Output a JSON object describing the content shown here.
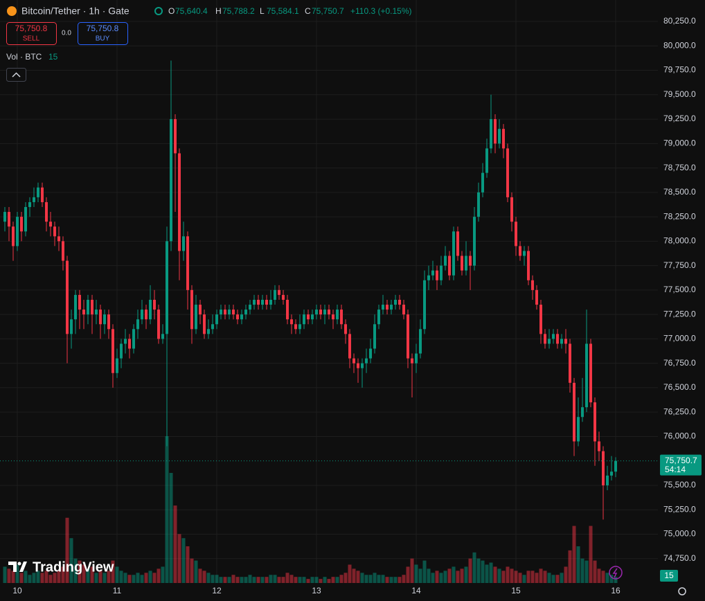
{
  "chart_data": {
    "type": "candlestick",
    "header": {
      "title": "Bitcoin/Tether · 1h · Gate",
      "o_label": "O",
      "open": "75,640.4",
      "h_label": "H",
      "high": "75,788.2",
      "l_label": "L",
      "low": "75,584.1",
      "c_label": "C",
      "close": "75,750.7",
      "change": "+110.3 (+0.15%)"
    },
    "sell": {
      "price": "75,750.8",
      "label": "SELL"
    },
    "spread": "0.0",
    "buy": {
      "price": "75,750.8",
      "label": "BUY"
    },
    "volume_label": "Vol · BTC",
    "volume_value": "15",
    "last_price_label": "75,750.7",
    "countdown": "54:14",
    "volume_tag": "15",
    "brand": "TradingView",
    "up_color": "#089981",
    "down_color": "#f23645",
    "grid": true,
    "xtick_labels": [
      "10",
      "11",
      "12",
      "13",
      "14",
      "15",
      "16"
    ],
    "ylim": [
      74500,
      80470
    ],
    "yticks": [
      {
        "value": 74750,
        "label": "74,750.0"
      },
      {
        "value": 75000,
        "label": "75,000.0"
      },
      {
        "value": 75250,
        "label": "75,250.0"
      },
      {
        "value": 75500,
        "label": "75,500.0"
      },
      {
        "value": 76000,
        "label": "76,000.0"
      },
      {
        "value": 76250,
        "label": "76,250.0"
      },
      {
        "value": 76500,
        "label": "76,500.0"
      },
      {
        "value": 76750,
        "label": "76,750.0"
      },
      {
        "value": 77000,
        "label": "77,000.0"
      },
      {
        "value": 77250,
        "label": "77,250.0"
      },
      {
        "value": 77500,
        "label": "77,500.0"
      },
      {
        "value": 77750,
        "label": "77,750.0"
      },
      {
        "value": 78000,
        "label": "78,000.0"
      },
      {
        "value": 78250,
        "label": "78,250.0"
      },
      {
        "value": 78500,
        "label": "78,500.0"
      },
      {
        "value": 78750,
        "label": "78,750.0"
      },
      {
        "value": 79000,
        "label": "79,000.0"
      },
      {
        "value": 79250,
        "label": "79,250.0"
      },
      {
        "value": 79500,
        "label": "79,500.0"
      },
      {
        "value": 79750,
        "label": "79,750.0"
      },
      {
        "value": 80000,
        "label": "80,000.0"
      },
      {
        "value": 80250,
        "label": "80,250.0"
      }
    ],
    "last_price": 75750.7,
    "candles": [
      [
        78200,
        78350,
        78100,
        78300,
        40
      ],
      [
        78300,
        78350,
        78000,
        78150,
        35
      ],
      [
        78150,
        78200,
        77800,
        77950,
        30
      ],
      [
        77950,
        78300,
        77900,
        78250,
        45
      ],
      [
        78250,
        78300,
        78000,
        78100,
        25
      ],
      [
        78100,
        78400,
        78050,
        78350,
        30
      ],
      [
        78350,
        78450,
        78250,
        78400,
        20
      ],
      [
        78400,
        78550,
        78350,
        78450,
        25
      ],
      [
        78450,
        78600,
        78400,
        78550,
        30
      ],
      [
        78550,
        78600,
        78350,
        78400,
        25
      ],
      [
        78400,
        78450,
        78100,
        78200,
        30
      ],
      [
        78200,
        78300,
        78050,
        78150,
        20
      ],
      [
        78150,
        78200,
        77950,
        78050,
        25
      ],
      [
        78050,
        78150,
        77900,
        78000,
        30
      ],
      [
        78000,
        78050,
        77700,
        77800,
        40
      ],
      [
        77800,
        77850,
        76750,
        77050,
        160
      ],
      [
        77050,
        77300,
        76900,
        77200,
        110
      ],
      [
        77200,
        77500,
        77050,
        77450,
        60
      ],
      [
        77450,
        77500,
        77100,
        77300,
        55
      ],
      [
        77300,
        77400,
        77100,
        77250,
        45
      ],
      [
        77250,
        77450,
        77150,
        77400,
        35
      ],
      [
        77400,
        77450,
        77050,
        77250,
        40
      ],
      [
        77250,
        77400,
        77150,
        77300,
        25
      ],
      [
        77300,
        77350,
        77000,
        77150,
        30
      ],
      [
        77150,
        77300,
        77050,
        77250,
        25
      ],
      [
        77250,
        77300,
        77000,
        77100,
        30
      ],
      [
        77100,
        77150,
        76500,
        76650,
        55
      ],
      [
        76650,
        76900,
        76600,
        76800,
        40
      ],
      [
        76800,
        77000,
        76700,
        76950,
        30
      ],
      [
        76950,
        77100,
        76850,
        77000,
        25
      ],
      [
        77000,
        77050,
        76800,
        76900,
        20
      ],
      [
        76900,
        77150,
        76850,
        77100,
        20
      ],
      [
        77100,
        77300,
        77000,
        77200,
        25
      ],
      [
        77200,
        77400,
        77150,
        77300,
        20
      ],
      [
        77300,
        77350,
        77100,
        77200,
        25
      ],
      [
        77200,
        77550,
        77150,
        77400,
        30
      ],
      [
        77400,
        77500,
        77200,
        77300,
        25
      ],
      [
        77300,
        77350,
        76950,
        77000,
        35
      ],
      [
        77000,
        77150,
        76950,
        77050,
        40
      ],
      [
        77050,
        78150,
        75900,
        78000,
        360
      ],
      [
        78000,
        79850,
        77900,
        79250,
        270
      ],
      [
        79250,
        79300,
        78300,
        78900,
        190
      ],
      [
        78900,
        78950,
        77600,
        77900,
        120
      ],
      [
        77900,
        78200,
        77800,
        78050,
        110
      ],
      [
        78050,
        78100,
        77300,
        77500,
        90
      ],
      [
        77500,
        77550,
        76950,
        77100,
        60
      ],
      [
        77100,
        77450,
        77050,
        77350,
        55
      ],
      [
        77350,
        77400,
        77150,
        77250,
        35
      ],
      [
        77250,
        77300,
        77000,
        77050,
        30
      ],
      [
        77050,
        77200,
        77000,
        77100,
        25
      ],
      [
        77100,
        77250,
        77050,
        77150,
        20
      ],
      [
        77150,
        77300,
        77100,
        77250,
        20
      ],
      [
        77250,
        77350,
        77200,
        77300,
        15
      ],
      [
        77300,
        77350,
        77200,
        77250,
        15
      ],
      [
        77250,
        77350,
        77200,
        77300,
        15
      ],
      [
        77300,
        77350,
        77200,
        77250,
        20
      ],
      [
        77250,
        77300,
        77150,
        77200,
        15
      ],
      [
        77200,
        77300,
        77150,
        77250,
        15
      ],
      [
        77250,
        77350,
        77200,
        77300,
        15
      ],
      [
        77300,
        77400,
        77250,
        77350,
        20
      ],
      [
        77350,
        77450,
        77300,
        77400,
        15
      ],
      [
        77400,
        77450,
        77300,
        77350,
        15
      ],
      [
        77350,
        77450,
        77300,
        77400,
        15
      ],
      [
        77400,
        77450,
        77300,
        77350,
        15
      ],
      [
        77350,
        77500,
        77300,
        77400,
        20
      ],
      [
        77400,
        77550,
        77350,
        77500,
        20
      ],
      [
        77500,
        77550,
        77400,
        77450,
        15
      ],
      [
        77450,
        77500,
        77350,
        77400,
        15
      ],
      [
        77400,
        77450,
        77150,
        77200,
        25
      ],
      [
        77200,
        77250,
        77050,
        77150,
        20
      ],
      [
        77150,
        77200,
        77050,
        77100,
        15
      ],
      [
        77100,
        77250,
        77050,
        77150,
        15
      ],
      [
        77150,
        77300,
        77100,
        77250,
        15
      ],
      [
        77250,
        77300,
        77150,
        77200,
        10
      ],
      [
        77200,
        77300,
        77150,
        77250,
        15
      ],
      [
        77250,
        77350,
        77200,
        77300,
        15
      ],
      [
        77300,
        77350,
        77200,
        77250,
        10
      ],
      [
        77250,
        77350,
        77150,
        77300,
        15
      ],
      [
        77300,
        77350,
        77200,
        77250,
        10
      ],
      [
        77250,
        77300,
        77100,
        77200,
        15
      ],
      [
        77200,
        77350,
        77150,
        77300,
        15
      ],
      [
        77300,
        77350,
        77100,
        77150,
        20
      ],
      [
        77150,
        77200,
        76950,
        77050,
        25
      ],
      [
        77050,
        77100,
        76700,
        76800,
        45
      ],
      [
        76800,
        76850,
        76650,
        76750,
        35
      ],
      [
        76750,
        76800,
        76550,
        76700,
        30
      ],
      [
        76700,
        76800,
        76500,
        76750,
        25
      ],
      [
        76750,
        76900,
        76650,
        76800,
        20
      ],
      [
        76800,
        77000,
        76750,
        76900,
        20
      ],
      [
        76900,
        77250,
        76850,
        77150,
        25
      ],
      [
        77150,
        77350,
        77100,
        77300,
        20
      ],
      [
        77300,
        77450,
        77250,
        77350,
        20
      ],
      [
        77350,
        77400,
        77250,
        77300,
        15
      ],
      [
        77300,
        77400,
        77250,
        77350,
        15
      ],
      [
        77350,
        77450,
        77300,
        77400,
        15
      ],
      [
        77400,
        77450,
        77300,
        77350,
        15
      ],
      [
        77350,
        77400,
        77200,
        77250,
        20
      ],
      [
        77250,
        77300,
        76700,
        76800,
        40
      ],
      [
        76800,
        76850,
        76400,
        76750,
        60
      ],
      [
        76750,
        76950,
        76650,
        76850,
        45
      ],
      [
        76850,
        77200,
        76800,
        77100,
        35
      ],
      [
        77100,
        77700,
        77050,
        77600,
        55
      ],
      [
        77600,
        77750,
        77500,
        77650,
        35
      ],
      [
        77650,
        77800,
        77600,
        77700,
        25
      ],
      [
        77700,
        77750,
        77500,
        77600,
        30
      ],
      [
        77600,
        77850,
        77550,
        77750,
        25
      ],
      [
        77750,
        77950,
        77700,
        77850,
        30
      ],
      [
        77850,
        77900,
        77600,
        77650,
        35
      ],
      [
        77650,
        78150,
        77600,
        78100,
        40
      ],
      [
        78100,
        78150,
        77800,
        77850,
        30
      ],
      [
        77850,
        77900,
        77650,
        77700,
        35
      ],
      [
        77700,
        78000,
        77650,
        77850,
        40
      ],
      [
        77850,
        77900,
        77500,
        77750,
        60
      ],
      [
        77750,
        78350,
        77700,
        78250,
        75
      ],
      [
        78250,
        78600,
        78200,
        78500,
        60
      ],
      [
        78500,
        78800,
        78450,
        78700,
        55
      ],
      [
        78700,
        79050,
        78650,
        78950,
        45
      ],
      [
        78950,
        79500,
        78900,
        79250,
        50
      ],
      [
        79250,
        79300,
        78900,
        79000,
        40
      ],
      [
        79000,
        79250,
        78950,
        79150,
        35
      ],
      [
        79150,
        79200,
        78850,
        78950,
        30
      ],
      [
        78950,
        79000,
        78400,
        78450,
        40
      ],
      [
        78450,
        78500,
        78100,
        78200,
        35
      ],
      [
        78200,
        78250,
        77850,
        77950,
        30
      ],
      [
        77950,
        78000,
        77800,
        77850,
        25
      ],
      [
        77850,
        77950,
        77750,
        77900,
        20
      ],
      [
        77900,
        77950,
        77550,
        77600,
        30
      ],
      [
        77600,
        77650,
        77400,
        77500,
        30
      ],
      [
        77500,
        77550,
        77300,
        77350,
        25
      ],
      [
        77350,
        77400,
        76950,
        77050,
        35
      ],
      [
        77050,
        77100,
        76900,
        76950,
        30
      ],
      [
        76950,
        77100,
        76900,
        77000,
        25
      ],
      [
        77000,
        77100,
        76950,
        77050,
        20
      ],
      [
        77050,
        77100,
        76900,
        76950,
        20
      ],
      [
        76950,
        77050,
        76900,
        77000,
        25
      ],
      [
        77000,
        77100,
        76850,
        76950,
        40
      ],
      [
        76950,
        77000,
        76450,
        76550,
        80
      ],
      [
        76550,
        76600,
        75800,
        75950,
        140
      ],
      [
        75950,
        76400,
        75900,
        76200,
        90
      ],
      [
        76200,
        76600,
        76150,
        76300,
        60
      ],
      [
        76300,
        77300,
        76250,
        76950,
        55
      ],
      [
        76950,
        77000,
        76300,
        76350,
        140
      ],
      [
        76350,
        76400,
        75700,
        75950,
        55
      ],
      [
        75950,
        76050,
        75750,
        75850,
        35
      ],
      [
        75850,
        75900,
        75150,
        75500,
        30
      ],
      [
        75500,
        75700,
        75450,
        75600,
        25
      ],
      [
        75600,
        75800,
        75550,
        75640.4,
        20
      ],
      [
        75640.4,
        75788.2,
        75584.1,
        75750.7,
        15
      ]
    ]
  }
}
